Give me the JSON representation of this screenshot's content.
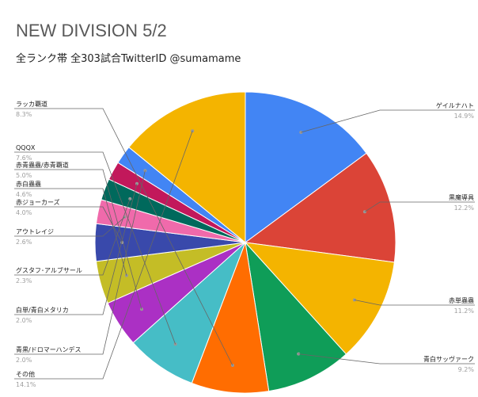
{
  "chart_data": {
    "type": "pie",
    "title": "NEW DIVISION 5/2",
    "subtitle": "全ランク帯 全303試合TwitterID @sumamame",
    "slices": [
      {
        "label": "ゲイルナハト",
        "value": 14.9,
        "value_label": "14.9%",
        "color": "#4285F4"
      },
      {
        "label": "黒魔導具",
        "value": 12.2,
        "value_label": "12.2%",
        "color": "#DB4437"
      },
      {
        "label": "赤単蟲蟲",
        "value": 11.2,
        "value_label": "11.2%",
        "color": "#F4B400"
      },
      {
        "label": "青白サッヴァーク",
        "value": 9.2,
        "value_label": "9.2%",
        "color": "#0F9D58"
      },
      {
        "label": "ラッカ覇道",
        "value": 8.3,
        "value_label": "8.3%",
        "color": "#FF6D01"
      },
      {
        "label": "QQQX",
        "value": 7.6,
        "value_label": "7.6%",
        "color": "#46BDC6"
      },
      {
        "label": "赤青蟲蟲/赤青覇道",
        "value": 5.0,
        "value_label": "5.0%",
        "color": "#AB30C4"
      },
      {
        "label": "赤白蟲蟲",
        "value": 4.6,
        "value_label": "4.6%",
        "color": "#C4BD26"
      },
      {
        "label": "赤ジョーカーズ",
        "value": 4.0,
        "value_label": "4.0%",
        "color": "#3949AB"
      },
      {
        "label": "アウトレイジ",
        "value": 2.6,
        "value_label": "2.6%",
        "color": "#F06AAB"
      },
      {
        "label": "グスタフ･アルブサール",
        "value": 2.3,
        "value_label": "2.3%",
        "color": "#00695C"
      },
      {
        "label": "白単/青白メタリカ",
        "value": 2.0,
        "value_label": "2.0%",
        "color": "#C2185B"
      },
      {
        "label": "青黒/ドロマーハンデス",
        "value": 2.0,
        "value_label": "2.0%",
        "color": "#4285F4"
      },
      {
        "label": "その他",
        "value": 14.1,
        "value_label": "14.1%",
        "color": "#F4B400"
      }
    ],
    "start_angle": "12 o'clock",
    "direction": "clockwise",
    "legend": "none (leader-line labels)"
  }
}
